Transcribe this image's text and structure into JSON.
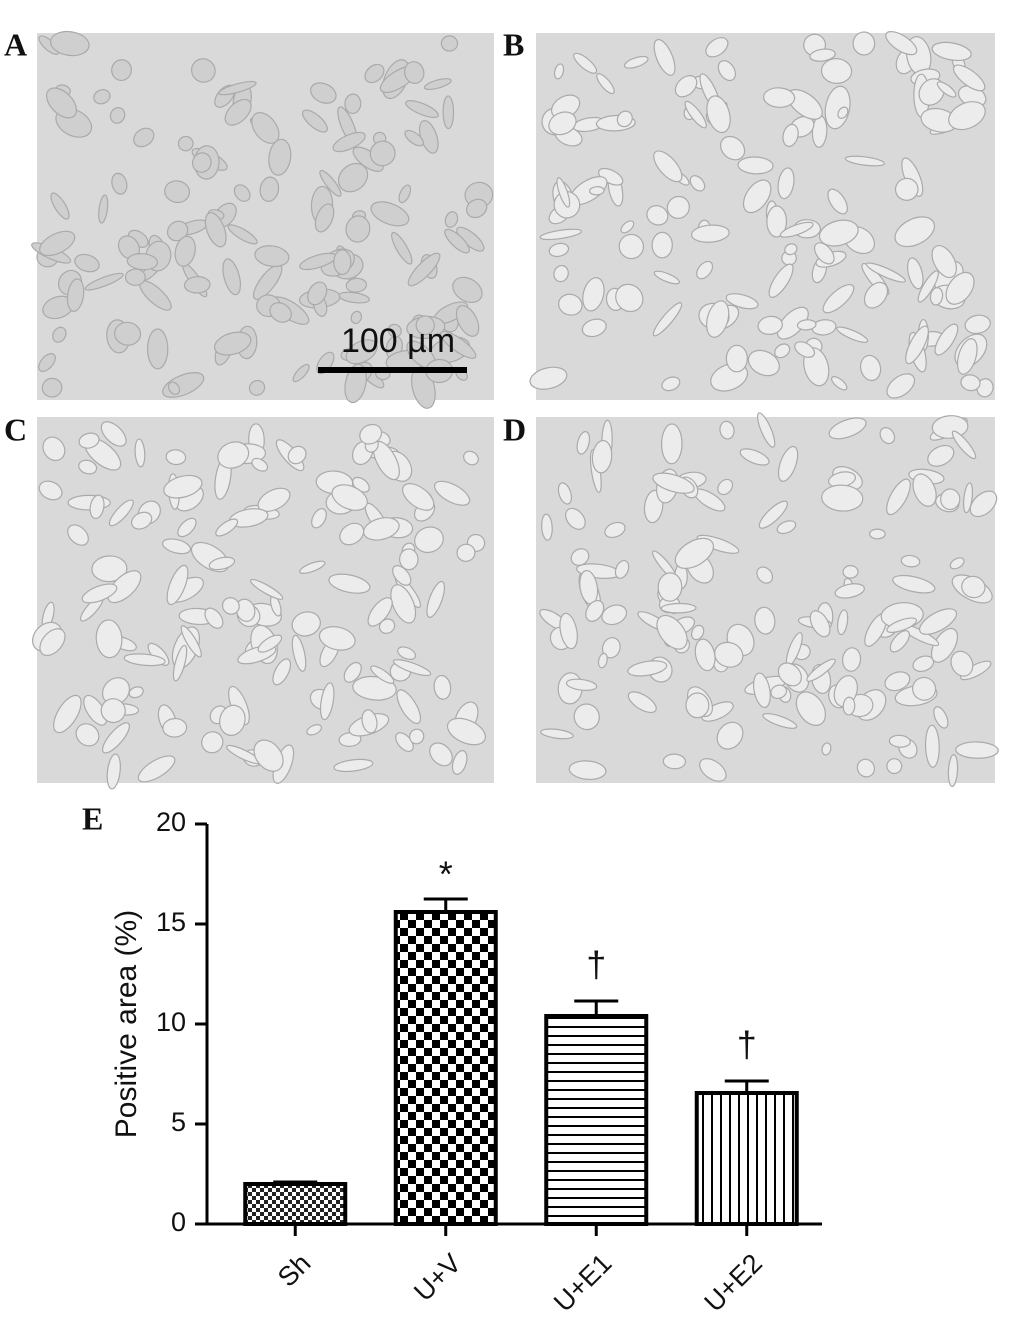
{
  "panels": [
    {
      "label": "A"
    },
    {
      "label": "B"
    },
    {
      "label": "C"
    },
    {
      "label": "D"
    }
  ],
  "scale_bar": "100 µm",
  "chart_data": {
    "type": "bar",
    "panel_label": "E",
    "y_label": "Positive area (%)",
    "categories": [
      "Sh",
      "U+V",
      "U+E1",
      "U+E2"
    ],
    "values": [
      2.0,
      15.6,
      10.4,
      6.55
    ],
    "errors": [
      0.1,
      0.65,
      0.75,
      0.6
    ],
    "annotations": [
      null,
      "*",
      "†",
      "†"
    ],
    "ylim": [
      0,
      20
    ],
    "yticks": [
      0,
      5,
      10,
      15,
      20
    ]
  }
}
